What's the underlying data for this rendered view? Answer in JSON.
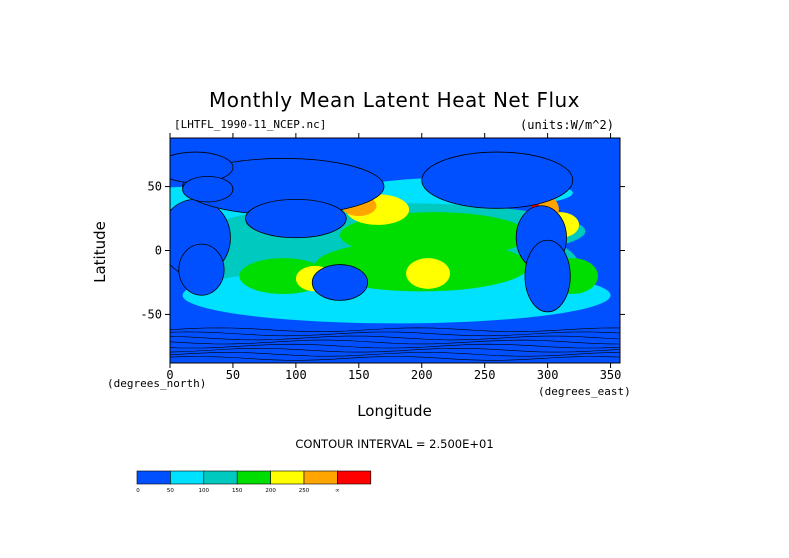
{
  "chart_data": {
    "type": "heatmap",
    "title": "Monthly Mean Latent Heat Net Flux",
    "file_label": "[LHTFL_1990-11_NCEP.nc]",
    "units_label": "(units:W/m^2)",
    "xlabel": "Longitude",
    "ylabel": "Latitude",
    "x_units_label": "(degrees_north)",
    "x_units_label2": "(degrees_east)",
    "xlim": [
      0,
      357.5
    ],
    "ylim": [
      -88,
      88
    ],
    "x_ticks": [
      "0",
      "50",
      "100",
      "150",
      "200",
      "250",
      "300",
      "350"
    ],
    "x_tick_values": [
      0,
      50,
      100,
      150,
      200,
      250,
      300,
      350
    ],
    "y_ticks": [
      "50",
      "0",
      "-50"
    ],
    "y_tick_values": [
      50,
      0,
      -50
    ],
    "contour_interval_label": "CONTOUR INTERVAL = 2.500E+01",
    "colorbar": {
      "levels": [
        0,
        50,
        100,
        150,
        200,
        250
      ],
      "labels": [
        "0",
        "50",
        "100",
        "150",
        "200",
        "250",
        "∞"
      ],
      "colors": [
        "#0050ff",
        "#00e0ff",
        "#00c9c0",
        "#00dd00",
        "#ffff00",
        "#ffa500",
        "#ff0000"
      ]
    },
    "land_color": "#0050ff",
    "grid": false
  }
}
